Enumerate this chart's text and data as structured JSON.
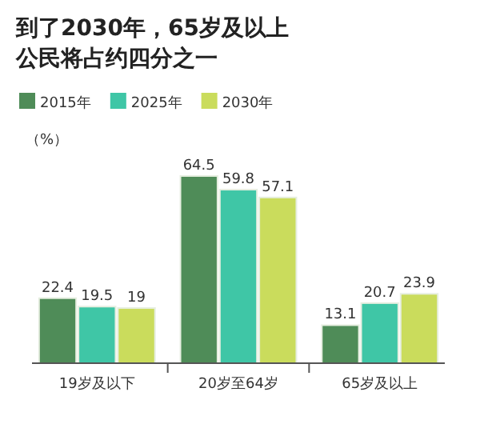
{
  "chart_data": {
    "type": "bar",
    "title": "到了2030年，65岁及以上公民将占约四分之一",
    "ylabel": "（%）",
    "categories": [
      "19岁及以下",
      "20岁至64岁",
      "65岁及以上"
    ],
    "series": [
      {
        "name": "2015年",
        "color": "#4f8c58",
        "values": [
          22.4,
          64.5,
          13.1
        ]
      },
      {
        "name": "2025年",
        "color": "#3fc6a6",
        "values": [
          19.5,
          59.8,
          20.7
        ]
      },
      {
        "name": "2030年",
        "color": "#cadc5c",
        "values": [
          19,
          57.1,
          23.9
        ]
      }
    ],
    "data_labels": true,
    "legend": "top left"
  }
}
